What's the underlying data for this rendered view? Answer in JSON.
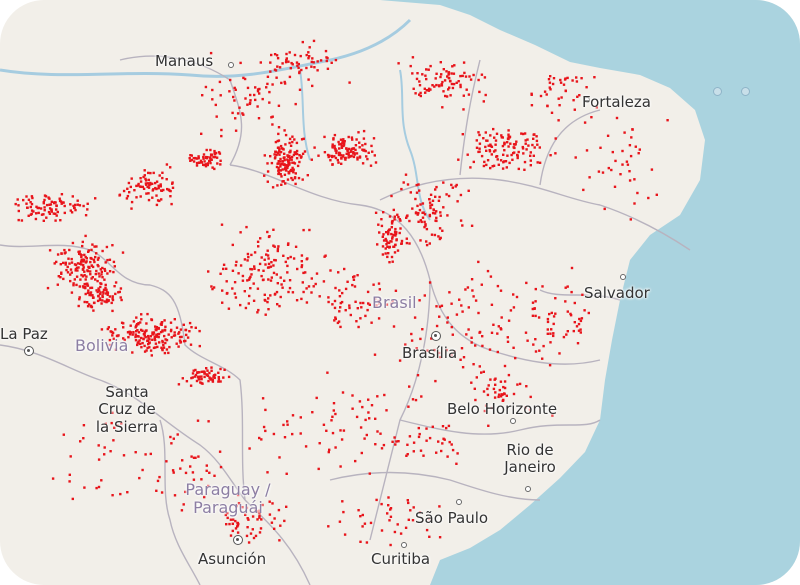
{
  "map": {
    "colors": {
      "land": "#f2efe9",
      "ocean": "#aad3df",
      "border": "#b8b3bf",
      "river": "#a6cce0",
      "fire_points": "#e8141b",
      "label": "#333333",
      "country_label": "#8c7ea3"
    },
    "fire_points_label": "",
    "country_labels": {
      "brasil": "Brasil",
      "bolivia": "Bolivia",
      "paraguay_line1": "Paraguay /",
      "paraguay_line2": "Paraguái"
    },
    "city_labels": {
      "manaus": "Manaus",
      "fortaleza": "Fortaleza",
      "salvador": "Salvador",
      "la_paz": "La Paz",
      "brasilia": "Brasília",
      "santa_cruz_line1": "Santa",
      "santa_cruz_line2": "Cruz de",
      "santa_cruz_line3": "la Sierra",
      "belo_horizonte": "Belo Horizonte",
      "rio_line1": "Rio de",
      "rio_line2": "Janeiro",
      "sao_paulo": "São Paulo",
      "asuncion": "Asunción",
      "curitiba": "Curitiba"
    }
  }
}
